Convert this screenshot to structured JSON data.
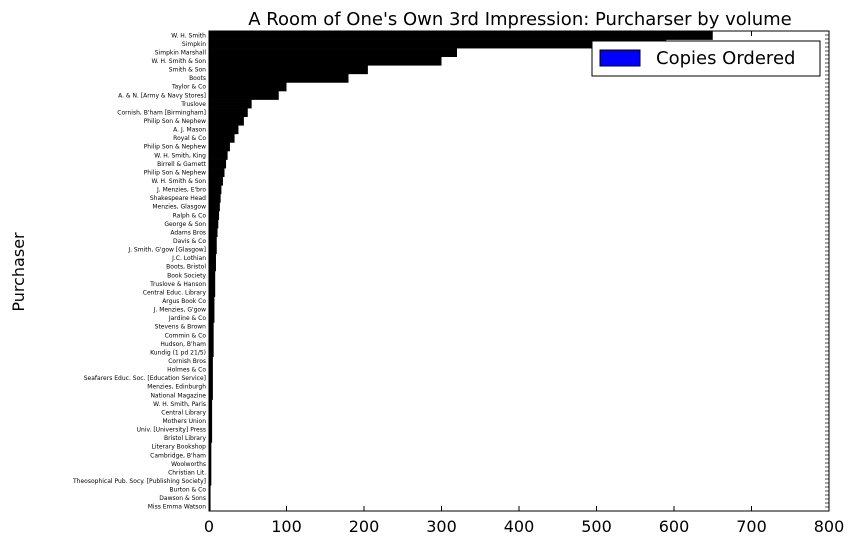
{
  "chart_data": {
    "type": "bar",
    "orientation": "horizontal",
    "title": "A Room of One's Own 3rd Impression: Purcharser by volume",
    "xlabel": "",
    "ylabel": "Purchaser",
    "xlim": [
      0,
      800
    ],
    "xticks": [
      "0",
      "100",
      "200",
      "300",
      "400",
      "500",
      "600",
      "700",
      "800"
    ],
    "legend": {
      "position": "top-right",
      "entries": [
        {
          "label": "Copies Ordered",
          "color": "#0000ff"
        }
      ]
    },
    "bar_color": "#000000",
    "series": [
      {
        "name": "Copies Ordered"
      }
    ],
    "categories": [
      "W. H. Smith",
      "Simpkin",
      "Simpkin Marshall",
      "W. H. Smith & Son",
      "Smith & Son",
      "Boots",
      "Taylor & Co",
      "A. & N. [Army & Navy Stores]",
      "Truslove",
      "Cornish, B'ham [Birmingham]",
      "Philip Son & Nephew",
      "A. J. Mason",
      "Royal & Co",
      "Philip Son & Nephew",
      "W. H. Smith, King",
      "Birrell & Garnett",
      "Philip Son & Nephew",
      "W. H. Smith & Son",
      "J. Menzies, E'bro",
      "Shakespeare Head",
      "Menzies, Glasgow",
      "Ralph & Co",
      "George & Son",
      "Adams Bros",
      "Davis & Co",
      "J. Smith, G'gow [Glasgow]",
      "J.C. Lothian",
      "Boots, Bristol",
      "Book Society",
      "Truslove & Hanson",
      "Central Educ. Library",
      "Argus Book Co",
      "J. Menzies, G'gow",
      "Jardine & Co",
      "Stevens & Brown",
      "Commin & Co",
      "Hudson, B'ham",
      "Kundig (1 pd 21/5)",
      "Cornish Bros",
      "Holmes & Co",
      "Seafarers Educ. Soc. [Education Service]",
      "Menzies, Edinburgh",
      "National Magazine",
      "W. H. Smith, Paris",
      "Central Library",
      "Mothers Union",
      "Univ. [University] Press",
      "Bristol Library",
      "Literary Bookshop",
      "Cambridge, B'ham",
      "Woolworths",
      "Christian Lit.",
      "Theosophical Pub. Socy. [Publishing Society]",
      "Burton & Co",
      "Dawson & Sons",
      "Miss Emma Watson"
    ],
    "values": [
      650,
      590,
      320,
      300,
      205,
      180,
      100,
      90,
      55,
      50,
      45,
      38,
      33,
      27,
      24,
      22,
      20,
      18,
      16,
      15,
      14,
      13,
      12,
      11,
      10,
      10,
      9,
      9,
      8,
      8,
      8,
      7,
      7,
      7,
      6,
      6,
      6,
      6,
      5,
      5,
      5,
      5,
      5,
      4,
      4,
      4,
      4,
      4,
      3,
      3,
      3,
      3,
      3,
      2,
      2,
      2
    ]
  }
}
